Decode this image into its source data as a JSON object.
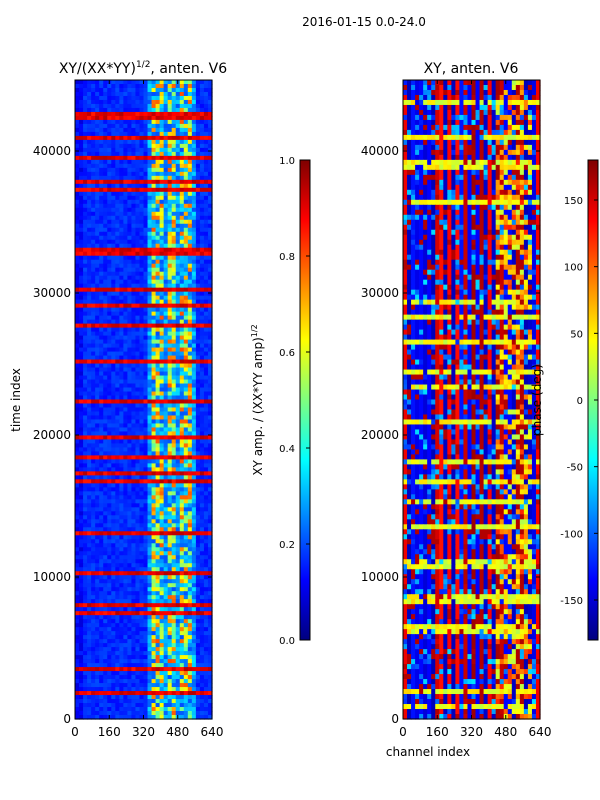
{
  "figure": {
    "suptitle": "2016-01-15 0.0-24.0"
  },
  "colors": {
    "jet": [
      "#00007f",
      "#0000ff",
      "#007fff",
      "#00ffff",
      "#7fff7f",
      "#ffff00",
      "#ff7f00",
      "#ff0000",
      "#7f0000"
    ],
    "frame": "#000000",
    "background": "#ffffff"
  },
  "chart_data": [
    {
      "id": "amplitude",
      "type": "heatmap",
      "title_main": "XY/(XX*YY)",
      "title_exp": "1/2",
      "title_tail": ", anten. V6",
      "xlabel": "",
      "ylabel": "time index",
      "xlim": [
        0,
        640
      ],
      "ylim": [
        0,
        45000
      ],
      "xticks": [
        0,
        160,
        320,
        480,
        640
      ],
      "yticks": [
        0,
        10000,
        20000,
        30000,
        40000
      ],
      "colorbar": {
        "label_main": "XY amp. / (XX*YY amp)",
        "label_exp": "1/2",
        "range": [
          0.0,
          1.0
        ],
        "ticks": [
          "0.0",
          "0.2",
          "0.4",
          "0.6",
          "0.8",
          "1.0"
        ],
        "tick_values": [
          0.0,
          0.2,
          0.4,
          0.6,
          0.8,
          1.0
        ]
      },
      "description": "normalized cross-correlation amplitude per time index and channel index; mostly low (~0.1-0.2) with bright bands (0.4-1.0) near channels 400-560 and full-width high rows near time index 20400, 37400, 42000"
    },
    {
      "id": "phase",
      "type": "heatmap",
      "title_main": "XY, anten. V6",
      "xlabel": "channel index",
      "ylabel": "",
      "xlim": [
        0,
        640
      ],
      "ylim": [
        0,
        45000
      ],
      "xticks": [
        0,
        160,
        320,
        480,
        640
      ],
      "yticks": [
        0,
        10000,
        20000,
        30000,
        40000
      ],
      "colorbar": {
        "label_main": "phase (deg)",
        "range": [
          -180,
          180
        ],
        "ticks": [
          "-150",
          "-100",
          "-50",
          "0",
          "50",
          "100",
          "150"
        ],
        "tick_values": [
          -150,
          -100,
          -50,
          0,
          50,
          100,
          150
        ]
      },
      "description": "cross-correlation phase per time index and channel index; alternating vertical bands near -180 (blue) and +180 (red) with many horizontal yellow/green rows"
    }
  ]
}
